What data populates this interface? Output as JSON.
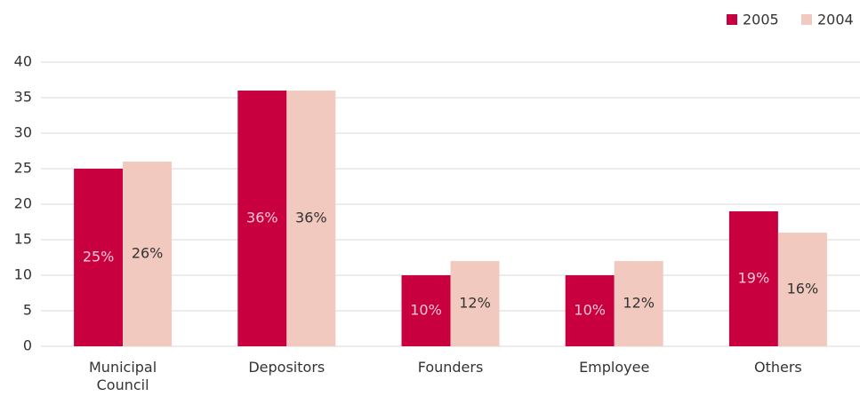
{
  "chart_data": {
    "type": "bar",
    "categories": [
      "Municipal Council",
      "Depositors",
      "Founders",
      "Employee",
      "Others"
    ],
    "series": [
      {
        "name": "2005",
        "color": "#c9003f",
        "values": [
          25,
          36,
          10,
          10,
          19
        ],
        "value_labels": [
          "25%",
          "36%",
          "10%",
          "10%",
          "19%"
        ]
      },
      {
        "name": "2004",
        "color": "#f2c9be",
        "values": [
          26,
          36,
          12,
          12,
          16
        ],
        "value_labels": [
          "26%",
          "36%",
          "12%",
          "12%",
          "16%"
        ]
      }
    ],
    "ylim": [
      0,
      40
    ],
    "yticks": [
      0,
      5,
      10,
      15,
      20,
      25,
      30,
      35,
      40
    ],
    "grid": true,
    "legend": "top-right"
  }
}
